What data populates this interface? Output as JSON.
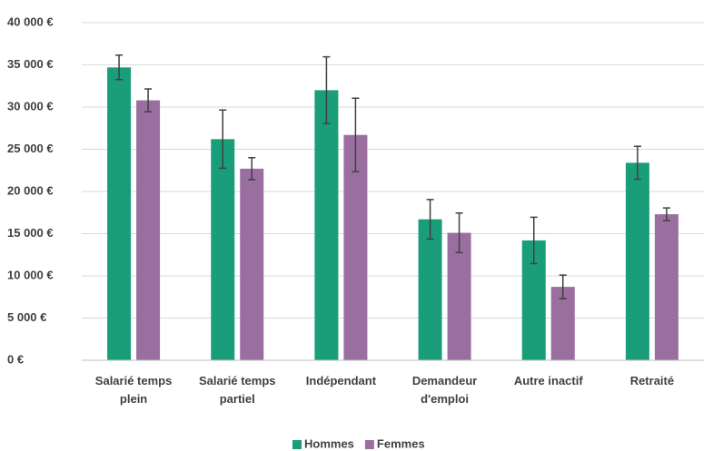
{
  "chart_data": {
    "type": "bar",
    "categories": [
      "Salarié temps plein",
      "Salarié temps partiel",
      "Indépendant",
      "Demandeur d'emploi",
      "Autre inactif",
      "Retraité"
    ],
    "series": [
      {
        "name": "Hommes",
        "color": "#1a9e7a",
        "values": [
          34700,
          26200,
          32000,
          16700,
          14200,
          23400
        ],
        "errors": [
          1450,
          3450,
          3950,
          2350,
          2750,
          1950
        ]
      },
      {
        "name": "Femmes",
        "color": "#9a6fa0",
        "values": [
          30800,
          22700,
          26700,
          15100,
          8700,
          17300
        ],
        "errors": [
          1350,
          1300,
          4350,
          2350,
          1400,
          750
        ]
      }
    ],
    "ylim": [
      0,
      40000
    ],
    "yticks": [
      {
        "value": 0,
        "label": "0 €"
      },
      {
        "value": 5000,
        "label": "5 000 €"
      },
      {
        "value": 10000,
        "label": "10 000 €"
      },
      {
        "value": 15000,
        "label": "15 000 €"
      },
      {
        "value": 20000,
        "label": "20 000 €"
      },
      {
        "value": 25000,
        "label": "25 000 €"
      },
      {
        "value": 30000,
        "label": "30 000 €"
      },
      {
        "value": 35000,
        "label": "35 000 €"
      },
      {
        "value": 40000,
        "label": "40 000 €"
      }
    ],
    "grid": true,
    "legend": "bottom"
  }
}
